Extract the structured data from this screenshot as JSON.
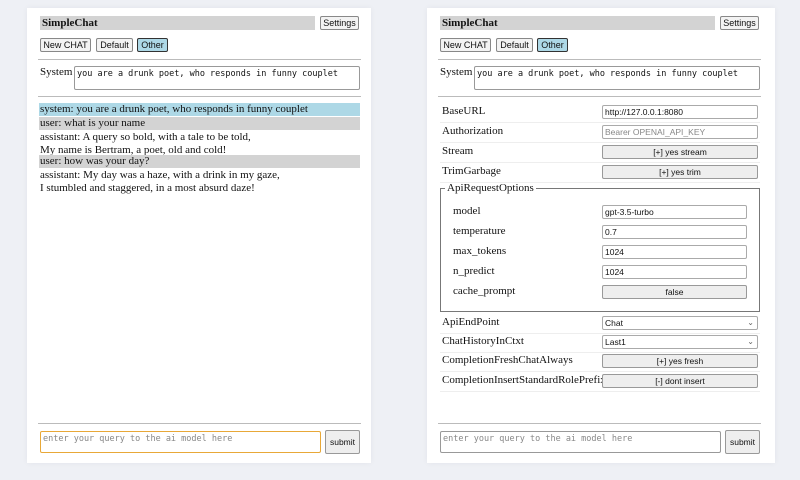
{
  "app_title": "SimpleChat",
  "settings_label": "Settings",
  "buttons": {
    "new_chat": "New CHAT",
    "default": "Default",
    "other": "Other"
  },
  "system_label": "System",
  "system_prompt": "you are a drunk poet, who responds in funny couplet",
  "messages": [
    {
      "role": "system",
      "lines": [
        "system: you are a drunk poet, who responds in funny couplet"
      ]
    },
    {
      "role": "user",
      "lines": [
        "user: what is your name"
      ]
    },
    {
      "role": "assistant",
      "lines": [
        "assistant: A query so bold, with a tale to be told,",
        "My name is Bertram, a poet, old and cold!"
      ]
    },
    {
      "role": "user",
      "lines": [
        "user: how was your day?"
      ]
    },
    {
      "role": "assistant",
      "lines": [
        "assistant: My day was a haze, with a drink in my gaze,",
        "I stumbled and staggered, in a most absurd daze!"
      ]
    }
  ],
  "query_placeholder": "enter your query to the ai model here",
  "submit_label": "submit",
  "settings": {
    "base_url": {
      "label": "BaseURL",
      "value": "http://127.0.0.1:8080"
    },
    "authorization": {
      "label": "Authorization",
      "placeholder": "Bearer OPENAI_API_KEY"
    },
    "stream": {
      "label": "Stream",
      "value": "[+] yes stream"
    },
    "trim_garbage": {
      "label": "TrimGarbage",
      "value": "[+] yes trim"
    },
    "api_request_options": {
      "legend": "ApiRequestOptions",
      "model": {
        "label": "model",
        "value": "gpt-3.5-turbo"
      },
      "temperature": {
        "label": "temperature",
        "value": "0.7"
      },
      "max_tokens": {
        "label": "max_tokens",
        "value": "1024"
      },
      "n_predict": {
        "label": "n_predict",
        "value": "1024"
      },
      "cache_prompt": {
        "label": "cache_prompt",
        "value": "false"
      }
    },
    "api_endpoint": {
      "label": "ApiEndPoint",
      "value": "Chat"
    },
    "chat_history": {
      "label": "ChatHistoryInCtxt",
      "value": "Last1"
    },
    "fresh_chat": {
      "label": "CompletionFreshChatAlways",
      "value": "[+] yes fresh"
    },
    "insert_prefix": {
      "label": "CompletionInsertStandardRolePrefix",
      "value": "[-] dont insert"
    }
  },
  "colors": {
    "system_msg": "#add8e6",
    "user_msg": "#d3d3d3",
    "focus_border": "#e8a838"
  }
}
